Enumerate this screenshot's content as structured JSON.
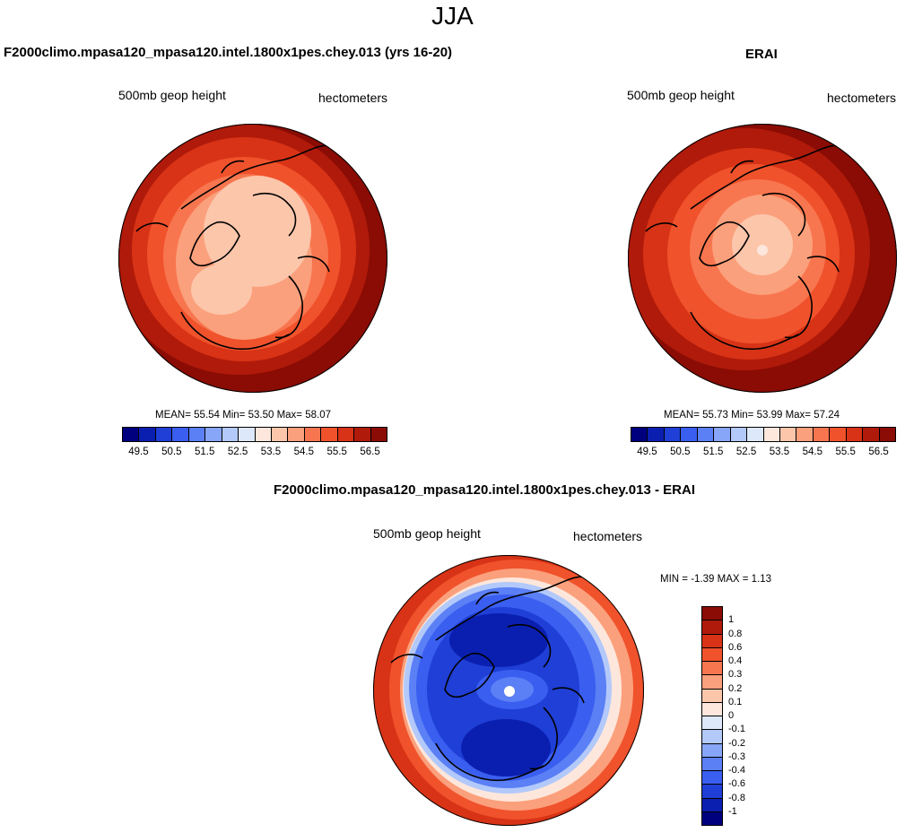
{
  "figure": {
    "title": "JJA"
  },
  "panels": [
    {
      "title": "F2000climo.mpasa120_mpasa120.intel.1800x1pes.chey.013 (yrs 16-20)",
      "left_label": "500mb geop height",
      "right_label": "hectometers",
      "stats": {
        "mean_label": "MEAN=",
        "mean": "55.54",
        "min_label": "Min=",
        "min": "53.50",
        "max_label": "Max=",
        "max": "58.07"
      },
      "colorbar": {
        "ticks": [
          "49.5",
          "50.5",
          "51.5",
          "52.5",
          "53.5",
          "54.5",
          "55.5",
          "56.5"
        ]
      }
    },
    {
      "title": "ERAI",
      "left_label": "500mb geop height",
      "right_label": "hectometers",
      "stats": {
        "mean_label": "MEAN=",
        "mean": "55.73",
        "min_label": "Min=",
        "min": "53.99",
        "max_label": "Max=",
        "max": "57.24"
      },
      "colorbar": {
        "ticks": [
          "49.5",
          "50.5",
          "51.5",
          "52.5",
          "53.5",
          "54.5",
          "55.5",
          "56.5"
        ]
      }
    },
    {
      "title": "F2000climo.mpasa120_mpasa120.intel.1800x1pes.chey.013 - ERAI",
      "left_label": "500mb geop height",
      "right_label": "hectometers",
      "stats": {
        "min_label": "MIN =",
        "min": "-1.39",
        "max_label": "MAX =",
        "max": "1.13"
      },
      "colorbar": {
        "ticks": [
          "1",
          "0.8",
          "0.6",
          "0.4",
          "0.3",
          "0.2",
          "0.1",
          "0",
          "-0.1",
          "-0.2",
          "-0.3",
          "-0.4",
          "-0.6",
          "-0.8",
          "-1"
        ]
      }
    }
  ],
  "colors": {
    "abs_scale": [
      "#00007f",
      "#0a1fb0",
      "#1f3fd6",
      "#3a5ef0",
      "#5b7ff5",
      "#88a6f7",
      "#b2c9fa",
      "#dde8fb",
      "#fde7dc",
      "#fcc6ab",
      "#fba07c",
      "#f8764f",
      "#f0522c",
      "#d83316",
      "#b01a0a",
      "#8a0c04"
    ],
    "diff_scale": [
      "#8a0c04",
      "#b01a0a",
      "#d83316",
      "#f0522c",
      "#f8764f",
      "#fba07c",
      "#fcc6ab",
      "#fde7dc",
      "#dde8fb",
      "#b2c9fa",
      "#88a6f7",
      "#5b7ff5",
      "#3a5ef0",
      "#1f3fd6",
      "#0a1fb0",
      "#00007f"
    ]
  }
}
